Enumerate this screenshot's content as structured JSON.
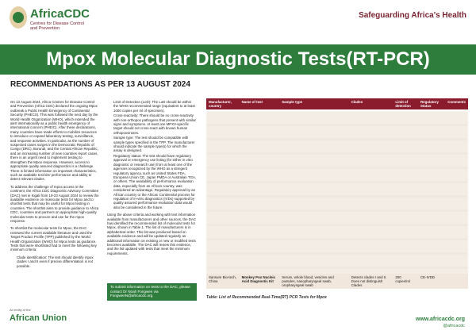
{
  "header": {
    "logo_name": "AfricaCDC",
    "logo_subtitle": "Centres for Disease Control and Prevention",
    "tagline": "Safeguarding Africa's Health"
  },
  "title": "Mpox Molecular Diagnostic Tests(RT-PCR)",
  "subtitle": "RECOMMENDATIONS AS PER 13 AUGUST 2024",
  "column_a": {
    "paragraphs": [
      "On 13 August 2024, Africa Centres for Disease Control and Prevention (Africa CDC) declared the ongoing Mpox outbreak a Public Health Emergency of Continental Security (PHECS). This was followed the next day by the World Health Organization (WHO), which extended the alert internationally as a public health emergency of international concern (PHEIC). After these declarations, many countries have made efforts to mobilize resources to introduce or expand laboratory testing, surveillance, and response activities. In particular, as the number of suspected cases surges in the Democratic Republic of Congo (DRC), Burundi, and the Central African Republic, and an increasing number of new countries report cases, there is an urgent need to implement testing to strengthen the Mpox response. However, access to appropriate quality assured diagnostics is a challenge. There is limited information on important characteristics, such as available test kits' performance and ability to detect relevant clades.",
      "To address the challenge of mpox access in the continent, the Africa CDC Diagnostic Advisory Committee (DAC) met in Kigali from 19-23 August 2024 to review the available evidence on molecular tests for Mpox and to shortlist tests that may be useful for Mpox testing in countries. The shortlist aims to provide guidance to Africa CDC, countries and partners on appropriate high-quality molecular tests to procure and use for the mpox response.",
      "To shortlist the molecular tests for Mpox, the DAC reviewed the current available literature and used the Target Product Profile (TPP) published by the World Health Organization (WHO) for Mpox tests as guidance. Tests that were shortlisted had to meet the following key minimum criteria:"
    ],
    "bullets": [
      "Clade identification: The test should identify mpox clades I and II even if precise differentiation is not possible."
    ]
  },
  "column_b": {
    "bullets": [
      "Limit of Detection (LoD): The LoD should be within the WHO recommended range (equivalent to at least 1000 copies per ml of specimen).",
      "Cross-reactivity: There should be no cross-reactivity with non-orthopox pathogens that present with similar signs and symptoms. At least one MPXV-specific target should not cross-react with known human orthopoxviruses.",
      "Sample type: The test should be compatible with sample types specified in the TPP. The manufacturer should indicate the sample type(s) for which the assay is designed.",
      "Regulatory status: The test should have regulatory approval or emergency use listing (for either in vitro diagnostic or research use) from at least one of the agencies recognized by the WHO as a stringent regulatory agency, such as United States FDA, European Union CE, Japan PMDA or Australian TGA, or others. The availability of performance evaluation data, especially from an African country, was considered an advantage. Regulatory approval by an African country or the African Continental process for regulation of in-vitro diagnostics (IVDs) supported by quality assured performance evaluation data would also be considered in the future."
    ],
    "paragraph": "Using the above criteria and working with test information available from manufacturers and other sources, the DAC has identified the recommended list of molecular tests for Mpox, shown in Table 1. The list of manufacturers is in alphabetical order. This list was produced based on available evidence and will be updated regularly as additional information on existing or new or modified tests becomes available. The DAC will review this evidence, and the list updated with tests that meet the minimum requirements.",
    "contact": "To submit information on tests to the DAC, please contact Dr Noah Fongwen via FongwenN@africacdc.org."
  },
  "table": {
    "headers": [
      "Manufacturer, country",
      "Name of test",
      "Sample type",
      "Clades",
      "Limit of detection",
      "Regulatory Status",
      "Comments"
    ],
    "rows": [
      [
        "Sansure Bio-tech, China",
        "Monkey Pox Nucleic Acid Diagnostic Kit",
        "Serum, whole blood, vesicles and pustules, nasopharyngeal swab, oropharyngeal swab",
        "Detects clades I and II. Does not distinguish Clades",
        "200 copies/ml",
        "CE-IVDD",
        ""
      ]
    ],
    "caption": "Table: List of Recommended Real-Time(RT) PCR Tests for Mpox"
  },
  "footer": {
    "entity": "An entity of the",
    "union": "African Union",
    "website": "www.africacdc.org",
    "handle": "@africacdc"
  }
}
